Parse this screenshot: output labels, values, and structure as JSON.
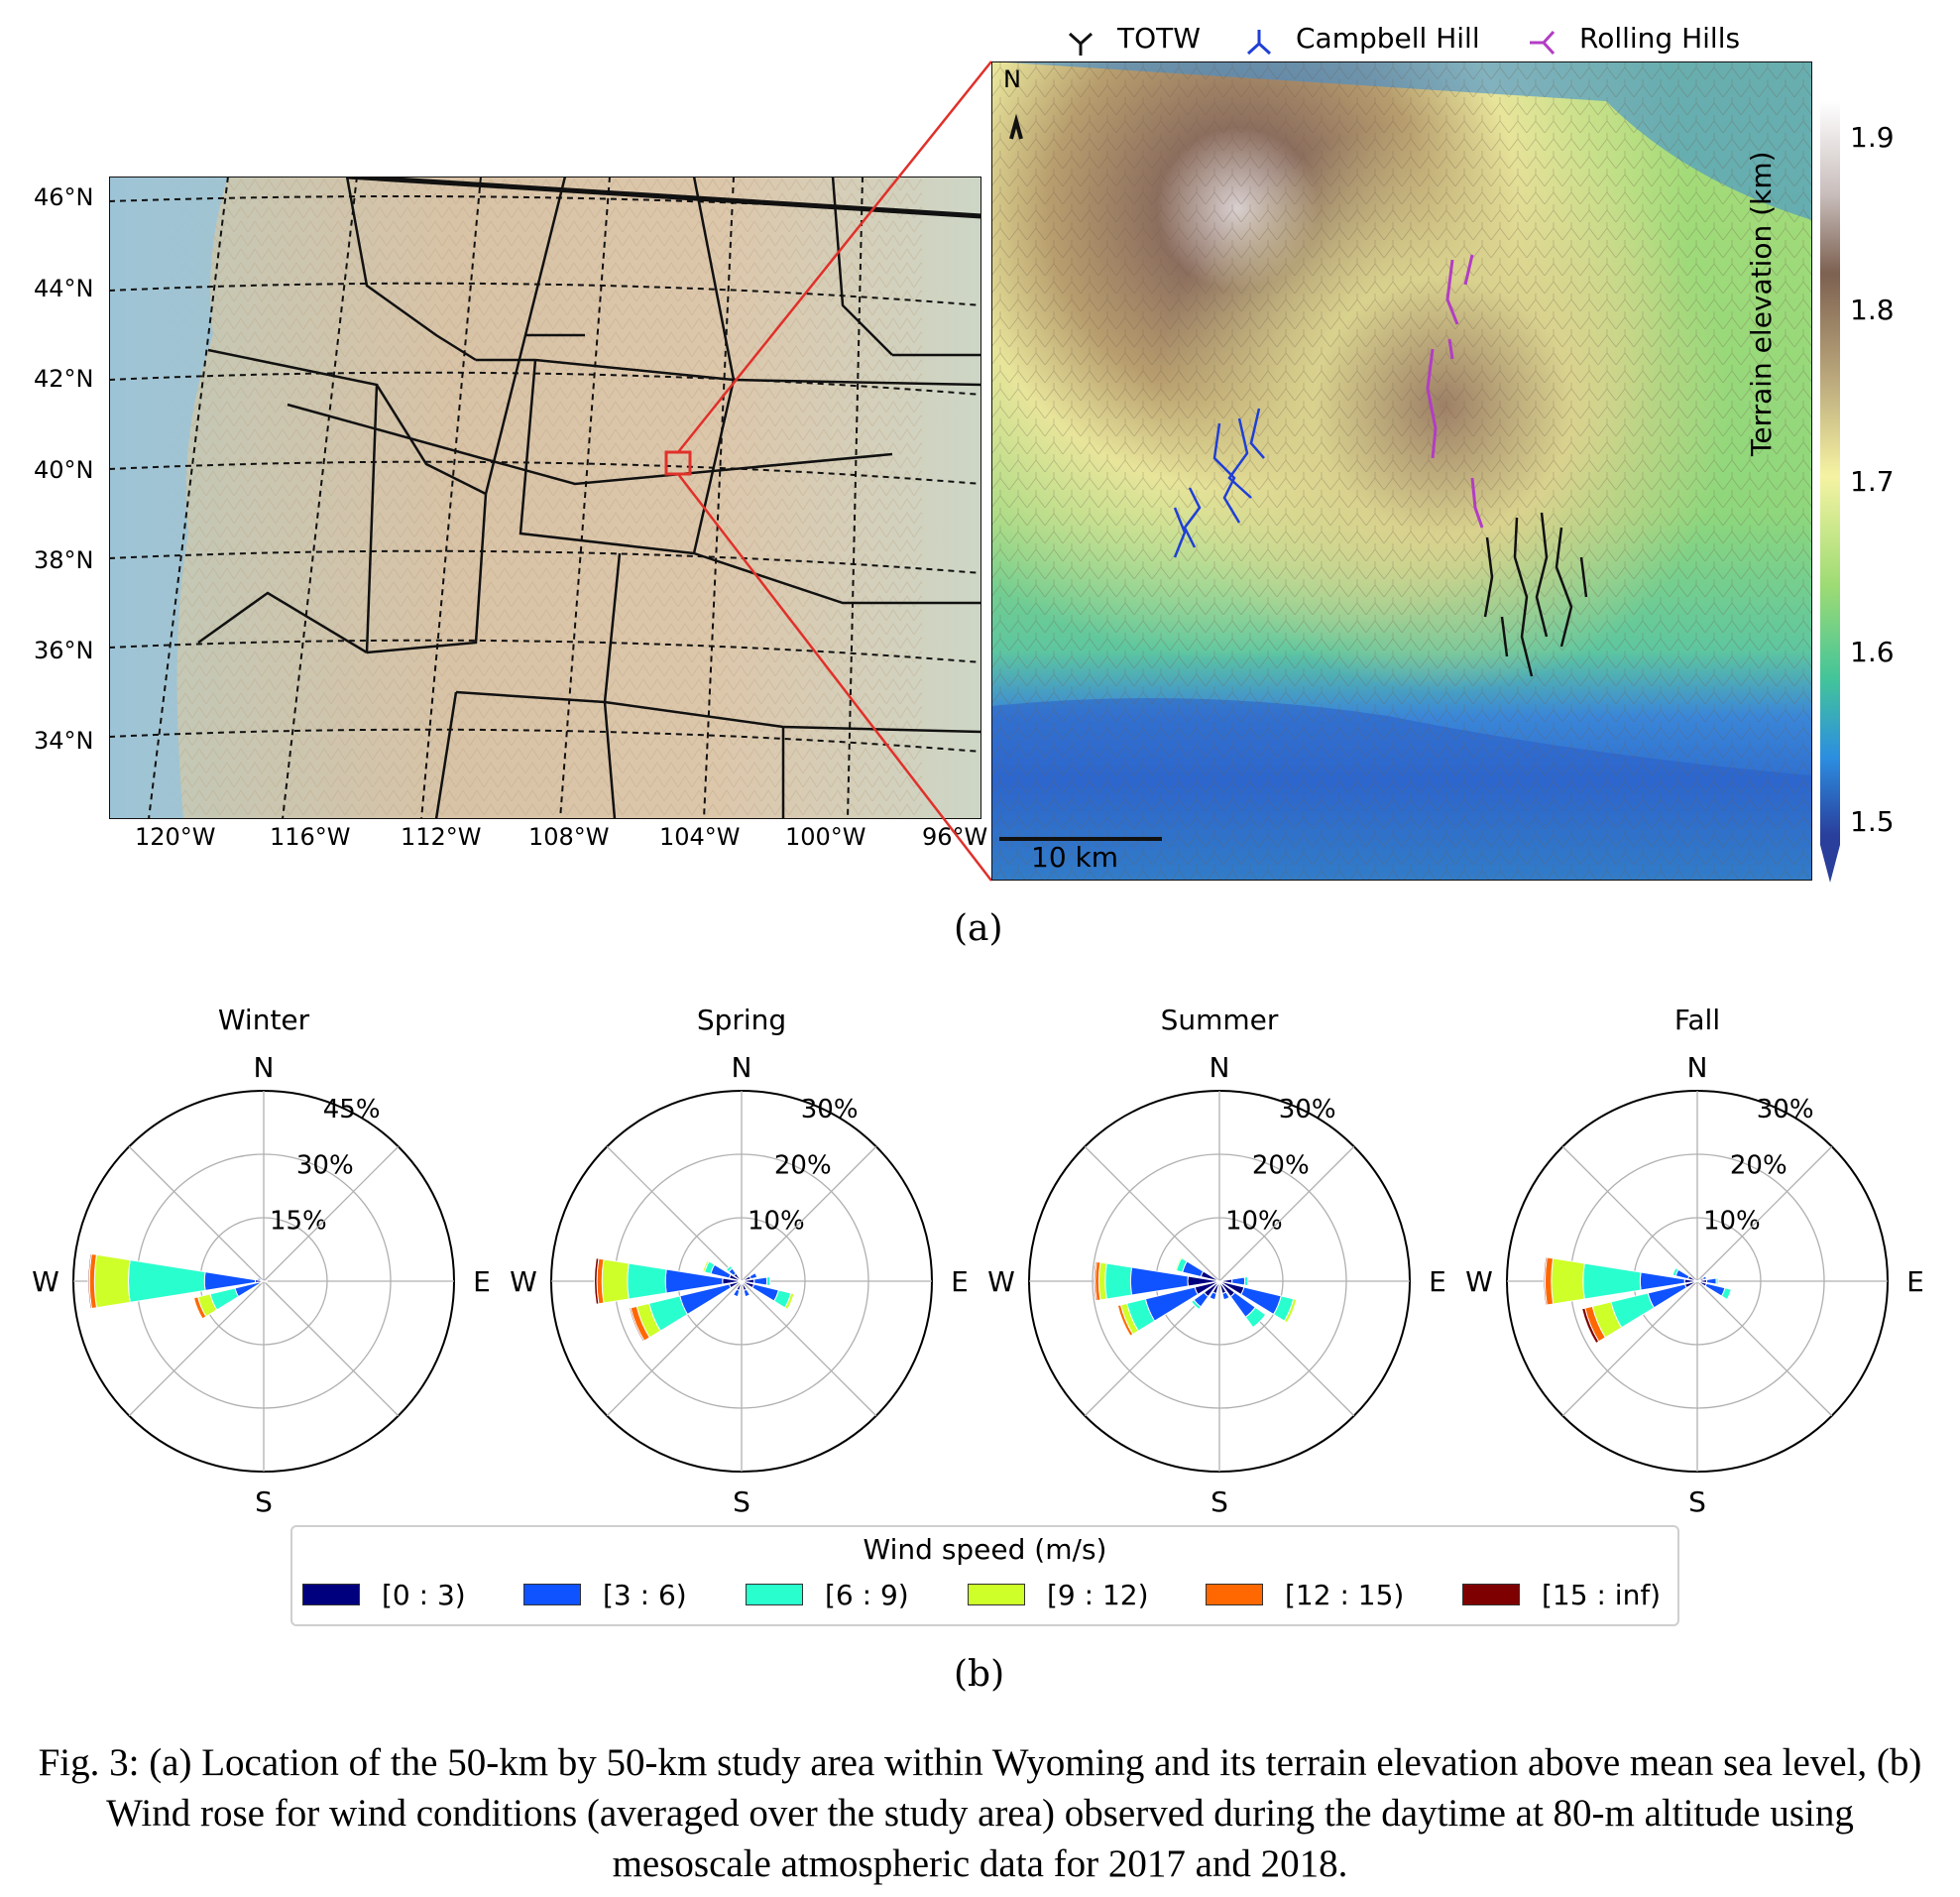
{
  "panel_a": {
    "tag": "(a)",
    "map": {
      "lat_labels": [
        "46°N",
        "44°N",
        "42°N",
        "40°N",
        "38°N",
        "36°N",
        "34°N"
      ],
      "lon_labels": [
        "120°W",
        "116°W",
        "112°W",
        "108°W",
        "104°W",
        "100°W",
        "96°W"
      ]
    },
    "terrain": {
      "legend": [
        {
          "label": "TOTW",
          "color": "#000000",
          "marker": "tri_down"
        },
        {
          "label": "Campbell Hill",
          "color": "#1f3fd6",
          "marker": "tri_up"
        },
        {
          "label": "Rolling Hills",
          "color": "#b23dc4",
          "marker": "tri_left"
        }
      ],
      "north_label": "N",
      "scalebar_label": "10 km",
      "colorbar": {
        "label": "Terrain elevation (km)",
        "ticks": [
          "1.9",
          "1.8",
          "1.7",
          "1.6",
          "1.5"
        ]
      }
    }
  },
  "panel_b": {
    "tag": "(b)",
    "legend_title": "Wind speed (m/s)",
    "speed_bins": [
      {
        "label": "[0 : 3)",
        "color": "#00007f"
      },
      {
        "label": "[3 : 6)",
        "color": "#0f52ff"
      },
      {
        "label": "[6 : 9)",
        "color": "#29ffce"
      },
      {
        "label": "[9 : 12)",
        "color": "#ceff29"
      },
      {
        "label": "[12 : 15)",
        "color": "#ff6800"
      },
      {
        "label": "[15 : inf)",
        "color": "#7f0000"
      }
    ]
  },
  "chart_data": [
    {
      "type": "wind-rose",
      "title": "Winter",
      "compass": [
        "N",
        "E",
        "S",
        "W"
      ],
      "rlabels": [
        "15%",
        "30%",
        "45%"
      ],
      "rmax": 45,
      "bins": [
        "[0 : 3)",
        "[3 : 6)",
        "[6 : 9)",
        "[9 : 12)",
        "[12 : 15)",
        "[15 : inf)"
      ],
      "directions": [
        {
          "angle": 270,
          "values": [
            2,
            12,
            18,
            8,
            1.2,
            0.3
          ]
        },
        {
          "angle": 247.5,
          "values": [
            1,
            6,
            6,
            3,
            1,
            0.2
          ]
        },
        {
          "angle": 292.5,
          "values": [
            0.5,
            1,
            0.3,
            0,
            0,
            0
          ]
        },
        {
          "angle": 90,
          "values": [
            0.5,
            0.3,
            0,
            0,
            0,
            0
          ]
        },
        {
          "angle": 112.5,
          "values": [
            0.3,
            0.2,
            0,
            0,
            0,
            0
          ]
        }
      ]
    },
    {
      "type": "wind-rose",
      "title": "Spring",
      "compass": [
        "N",
        "E",
        "S",
        "W"
      ],
      "rlabels": [
        "10%",
        "20%",
        "30%"
      ],
      "rmax": 30,
      "bins": [
        "[0 : 3)",
        "[3 : 6)",
        "[6 : 9)",
        "[9 : 12)",
        "[12 : 15)",
        "[15 : inf)"
      ],
      "directions": [
        {
          "angle": 270,
          "values": [
            3,
            9,
            6,
            4,
            0.8,
            0.4
          ]
        },
        {
          "angle": 247.5,
          "values": [
            2,
            8,
            5,
            2,
            1,
            0.2
          ]
        },
        {
          "angle": 292.5,
          "values": [
            2,
            3,
            1,
            0.3,
            0,
            0
          ]
        },
        {
          "angle": 112.5,
          "values": [
            2,
            4,
            2,
            0.5,
            0,
            0
          ]
        },
        {
          "angle": 90,
          "values": [
            2,
            2,
            0.5,
            0,
            0,
            0
          ]
        },
        {
          "angle": 67.5,
          "values": [
            1.5,
            1,
            0,
            0,
            0,
            0
          ]
        },
        {
          "angle": 315,
          "values": [
            1.5,
            1,
            0.5,
            0,
            0,
            0
          ]
        },
        {
          "angle": 202.5,
          "values": [
            1.5,
            1,
            0,
            0,
            0,
            0
          ]
        },
        {
          "angle": 157.5,
          "values": [
            1.5,
            1,
            0,
            0,
            0,
            0
          ]
        }
      ]
    },
    {
      "type": "wind-rose",
      "title": "Summer",
      "compass": [
        "N",
        "E",
        "S",
        "W"
      ],
      "rlabels": [
        "10%",
        "20%",
        "30%"
      ],
      "rmax": 30,
      "bins": [
        "[0 : 3)",
        "[3 : 6)",
        "[6 : 9)",
        "[9 : 12)",
        "[12 : 15)",
        "[15 : inf)"
      ],
      "directions": [
        {
          "angle": 270,
          "values": [
            5,
            9,
            4,
            1,
            0.6,
            0.2
          ]
        },
        {
          "angle": 247.5,
          "values": [
            4,
            8,
            3,
            1,
            0.5,
            0.1
          ]
        },
        {
          "angle": 112.5,
          "values": [
            4,
            6,
            2,
            0.5,
            0,
            0
          ]
        },
        {
          "angle": 135,
          "values": [
            3,
            4,
            2,
            0,
            0,
            0
          ]
        },
        {
          "angle": 292.5,
          "values": [
            3,
            3,
            1,
            0.2,
            0,
            0
          ]
        },
        {
          "angle": 90,
          "values": [
            2,
            2,
            0.5,
            0,
            0,
            0
          ]
        },
        {
          "angle": 202.5,
          "values": [
            2,
            1,
            0,
            0,
            0,
            0
          ]
        },
        {
          "angle": 225,
          "values": [
            3,
            2,
            0.5,
            0,
            0,
            0
          ]
        },
        {
          "angle": 157.5,
          "values": [
            2,
            1,
            0,
            0,
            0,
            0
          ]
        }
      ]
    },
    {
      "type": "wind-rose",
      "title": "Fall",
      "compass": [
        "N",
        "E",
        "S",
        "W"
      ],
      "rlabels": [
        "10%",
        "20%",
        "30%"
      ],
      "rmax": 30,
      "bins": [
        "[0 : 3)",
        "[3 : 6)",
        "[6 : 9)",
        "[9 : 12)",
        "[12 : 15)",
        "[15 : inf)"
      ],
      "directions": [
        {
          "angle": 270,
          "values": [
            2,
            7,
            9,
            5,
            1,
            0.2
          ]
        },
        {
          "angle": 247.5,
          "values": [
            2,
            6,
            6,
            3,
            1.2,
            0.5
          ]
        },
        {
          "angle": 292.5,
          "values": [
            1.5,
            2,
            0.5,
            0,
            0,
            0
          ]
        },
        {
          "angle": 112.5,
          "values": [
            1.5,
            3,
            1,
            0,
            0,
            0
          ]
        },
        {
          "angle": 90,
          "values": [
            1.5,
            1.5,
            0.3,
            0,
            0,
            0
          ]
        },
        {
          "angle": 67.5,
          "values": [
            1,
            0.5,
            0,
            0,
            0,
            0
          ]
        }
      ]
    }
  ],
  "caption": "Fig. 3: (a) Location of the 50-km by 50-km study area within Wyoming and its terrain elevation above mean sea level, (b) Wind rose for wind conditions (averaged over the study area) observed during the daytime at 80-m altitude using mesoscale atmospheric data for 2017 and 2018."
}
